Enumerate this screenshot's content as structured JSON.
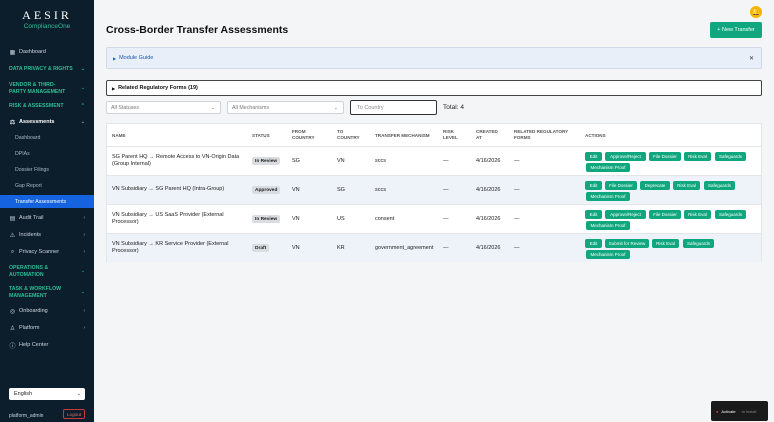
{
  "brand": {
    "name": "AESIR",
    "subtitle": "ComplianceOne"
  },
  "sidebar": {
    "dashboard": "Dashboard",
    "sections": {
      "data_privacy": "DATA PRIVACY & RIGHTS",
      "vendor": "VENDOR & THIRD-PARTY MANAGEMENT",
      "risk": "RISK & ASSESSMENT",
      "operations": "OPERATIONS & AUTOMATION",
      "task": "TASK & WORKFLOW MANAGEMENT"
    },
    "assessments": "Assessments",
    "sub_items": [
      "Dashboard",
      "DPIAs",
      "Dossier Filings",
      "Gap Report",
      "Transfer Assessments"
    ],
    "audit_trail": "Audit Trail",
    "incidents": "Incidents",
    "privacy_scanner": "Privacy Scanner",
    "onboarding": "Onboarding",
    "platform": "Platform",
    "help_center": "Help Center",
    "language": "English",
    "username": "platform_admin",
    "logout": "Logout"
  },
  "header": {
    "title": "Cross-Border Transfer Assessments",
    "new_button": "+ New Transfer"
  },
  "module_guide": "Module Guide",
  "related_forms": "Related Regulatory Forms (19)",
  "filters": {
    "status": "All Statuses",
    "mechanism": "All Mechanisms",
    "country_placeholder": "To Country",
    "total": "Total: 4"
  },
  "table": {
    "headers": {
      "name": "NAME",
      "status": "STATUS",
      "from": [
        "FROM",
        "COUNTRY"
      ],
      "to": [
        "TO",
        "COUNTRY"
      ],
      "mechanism": "TRANSFER MECHANISM",
      "risk": [
        "RISK",
        "LEVEL"
      ],
      "created": [
        "CREATED",
        "AT"
      ],
      "forms": [
        "RELATED REGULATORY",
        "FORMS"
      ],
      "actions": "ACTIONS"
    },
    "rows": [
      {
        "name1": "SG Parent HQ → Remote Access to VN-Origin Data",
        "name2": "(Group Internal)",
        "status": "In Review",
        "from": "SG",
        "to": "VN",
        "mechanism": "sccs",
        "risk": "—",
        "created": "4/16/2026",
        "forms": "—",
        "actions": [
          "Edit",
          "Approve/Reject",
          "File Dossier",
          "Risk Eval",
          "Safeguards",
          "Mechanism Proof"
        ]
      },
      {
        "name1": "VN Subsidiary → SG Parent HQ (Intra-Group)",
        "name2": "",
        "status": "Approved",
        "from": "VN",
        "to": "SG",
        "mechanism": "sccs",
        "risk": "—",
        "created": "4/16/2026",
        "forms": "—",
        "actions": [
          "Edit",
          "File Dossier",
          "Deprecate",
          "Risk Eval",
          "Safeguards",
          "Mechanism Proof"
        ]
      },
      {
        "name1": "VN Subsidiary → US SaaS Provider (External",
        "name2": "Processor)",
        "status": "In Review",
        "from": "VN",
        "to": "US",
        "mechanism": "consent",
        "risk": "—",
        "created": "4/16/2026",
        "forms": "—",
        "actions": [
          "Edit",
          "Approve/Reject",
          "File Dossier",
          "Risk Eval",
          "Safeguards",
          "Mechanism Proof"
        ]
      },
      {
        "name1": "VN Subsidiary → KR Service Provider (External",
        "name2": "Processor)",
        "status": "Draft",
        "from": "VN",
        "to": "KR",
        "mechanism": "government_agreement",
        "risk": "—",
        "created": "4/16/2026",
        "forms": "—",
        "actions": [
          "Edit",
          "Submit for Review",
          "Risk Eval",
          "Safeguards",
          "Mechanism Proof"
        ]
      }
    ]
  },
  "toast": {
    "primary": "Activate",
    "secondary": "to install"
  },
  "colors": {
    "accent": "#11a77e",
    "sidebar_bg": "#0c1e2c",
    "active_nav": "#1663e0",
    "section": "#2bbf95"
  }
}
